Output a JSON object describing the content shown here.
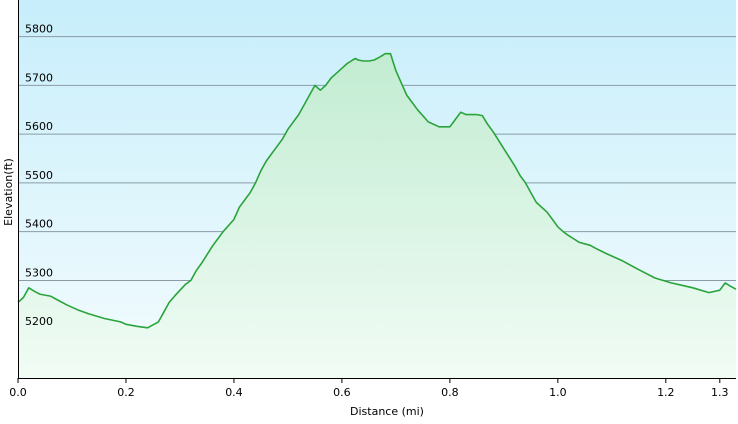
{
  "chart_data": {
    "type": "area",
    "xlabel": "Distance  (mi)",
    "ylabel": "Elevation(ft)",
    "xlim": [
      0.0,
      1.33
    ],
    "ylim": [
      5100,
      5875
    ],
    "x_ticks": [
      "0.0",
      "0.2",
      "0.4",
      "0.6",
      "0.8",
      "1.0",
      "1.2",
      "1.3"
    ],
    "y_ticks": [
      "5200",
      "5300",
      "5400",
      "5500",
      "5600",
      "5700",
      "5800"
    ],
    "grid": true,
    "legend": "none",
    "colors": {
      "line": "#2aa43a",
      "fill_top": "#c2ecd2",
      "fill_bottom": "#f1fcf5",
      "bg_top": "#c7eefb",
      "bg_bottom": "#f4fcfe",
      "grid": "#8a9ca6",
      "axis": "#000000"
    },
    "series": [
      {
        "x": [
          0.0,
          0.01,
          0.02,
          0.03,
          0.04,
          0.06,
          0.07,
          0.09,
          0.11,
          0.13,
          0.16,
          0.19,
          0.2,
          0.22,
          0.24,
          0.26,
          0.27,
          0.28,
          0.29,
          0.3,
          0.31,
          0.32,
          0.33,
          0.34,
          0.36,
          0.37,
          0.38,
          0.4,
          0.41,
          0.42,
          0.43,
          0.44,
          0.45,
          0.46,
          0.47,
          0.48,
          0.49,
          0.5,
          0.52,
          0.53,
          0.54,
          0.55,
          0.56,
          0.57,
          0.58,
          0.59,
          0.6,
          0.61,
          0.62,
          0.625,
          0.63,
          0.64,
          0.65,
          0.66,
          0.67,
          0.68,
          0.69,
          0.7,
          0.71,
          0.72,
          0.73,
          0.74,
          0.76,
          0.78,
          0.8,
          0.81,
          0.82,
          0.83,
          0.84,
          0.85,
          0.86,
          0.87,
          0.88,
          0.9,
          0.92,
          0.93,
          0.94,
          0.95,
          0.96,
          0.98,
          0.99,
          1.0,
          1.01,
          1.02,
          1.03,
          1.04,
          1.06,
          1.07,
          1.09,
          1.12,
          1.15,
          1.18,
          1.21,
          1.23,
          1.25,
          1.28,
          1.3,
          1.31,
          1.32,
          1.33
        ],
        "values": [
          5255,
          5265,
          5285,
          5278,
          5272,
          5268,
          5262,
          5250,
          5240,
          5232,
          5222,
          5215,
          5210,
          5206,
          5203,
          5215,
          5235,
          5255,
          5268,
          5280,
          5292,
          5300,
          5320,
          5335,
          5370,
          5385,
          5400,
          5425,
          5450,
          5465,
          5480,
          5500,
          5525,
          5545,
          5560,
          5575,
          5590,
          5610,
          5640,
          5660,
          5680,
          5700,
          5690,
          5700,
          5715,
          5725,
          5735,
          5745,
          5752,
          5755,
          5752,
          5750,
          5750,
          5752,
          5758,
          5765,
          5765,
          5730,
          5705,
          5680,
          5665,
          5650,
          5625,
          5615,
          5615,
          5630,
          5645,
          5640,
          5640,
          5640,
          5638,
          5620,
          5605,
          5570,
          5535,
          5515,
          5500,
          5480,
          5460,
          5440,
          5425,
          5410,
          5400,
          5392,
          5385,
          5378,
          5372,
          5366,
          5355,
          5340,
          5322,
          5305,
          5295,
          5290,
          5285,
          5275,
          5280,
          5295,
          5288,
          5282
        ]
      }
    ]
  }
}
